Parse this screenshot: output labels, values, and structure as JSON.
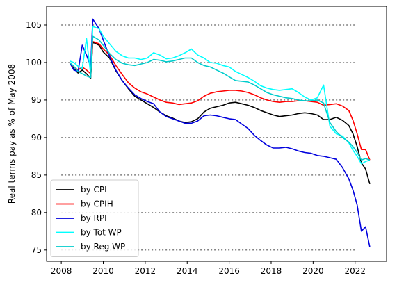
{
  "chart_data": {
    "type": "line",
    "title": "",
    "xlabel": "",
    "ylabel": "Real terms pay as % of May 2008",
    "xlim": [
      2007.3,
      2023.5
    ],
    "ylim": [
      73.5,
      107.5
    ],
    "xticks": [
      2008,
      2010,
      2012,
      2014,
      2016,
      2018,
      2020,
      2022
    ],
    "yticks": [
      75,
      80,
      85,
      90,
      95,
      100,
      105
    ],
    "reference_lines": {
      "style": "dotted",
      "color": "#808080",
      "y": [
        75,
        80,
        85,
        90,
        95,
        100,
        105
      ],
      "x_range": [
        2008.0,
        2022.0
      ]
    },
    "legend": {
      "position": "lower-left"
    },
    "grid": false,
    "series": [
      {
        "name": "by CPI",
        "color": "#000000",
        "x": [
          2008.4,
          2008.6,
          2008.8,
          2009.0,
          2009.2,
          2009.4,
          2009.5,
          2009.8,
          2010.0,
          2010.3,
          2010.6,
          2010.9,
          2011.2,
          2011.5,
          2011.8,
          2012.1,
          2012.4,
          2012.7,
          2013.0,
          2013.3,
          2013.6,
          2013.9,
          2014.2,
          2014.5,
          2014.8,
          2015.1,
          2015.4,
          2015.7,
          2016.0,
          2016.3,
          2016.6,
          2016.9,
          2017.2,
          2017.5,
          2017.8,
          2018.1,
          2018.4,
          2018.7,
          2019.0,
          2019.3,
          2019.6,
          2019.9,
          2020.2,
          2020.5,
          2020.8,
          2021.1,
          2021.4,
          2021.7,
          2021.9,
          2022.1,
          2022.3,
          2022.5,
          2022.7
        ],
        "values": [
          100.0,
          99.2,
          98.6,
          99.0,
          98.5,
          97.9,
          102.7,
          102.3,
          101.4,
          100.6,
          98.9,
          97.6,
          96.5,
          95.5,
          95.0,
          94.5,
          94.0,
          93.4,
          92.9,
          92.6,
          92.2,
          92.0,
          92.1,
          92.5,
          93.4,
          93.9,
          94.1,
          94.3,
          94.6,
          94.7,
          94.5,
          94.3,
          94.0,
          93.6,
          93.3,
          93.0,
          92.8,
          92.9,
          93.0,
          93.2,
          93.3,
          93.2,
          93.0,
          92.4,
          92.4,
          92.7,
          92.3,
          91.6,
          90.5,
          88.8,
          86.6,
          85.8,
          83.8
        ]
      },
      {
        "name": "by CPIH",
        "color": "#ff0000",
        "x": [
          2008.4,
          2008.6,
          2008.8,
          2009.0,
          2009.2,
          2009.4,
          2009.5,
          2009.8,
          2010.0,
          2010.3,
          2010.6,
          2010.9,
          2011.2,
          2011.5,
          2011.8,
          2012.1,
          2012.4,
          2012.7,
          2013.0,
          2013.3,
          2013.6,
          2013.9,
          2014.2,
          2014.5,
          2014.8,
          2015.1,
          2015.4,
          2015.7,
          2016.0,
          2016.3,
          2016.6,
          2016.9,
          2017.2,
          2017.5,
          2017.8,
          2018.1,
          2018.4,
          2018.7,
          2019.0,
          2019.3,
          2019.6,
          2019.9,
          2020.2,
          2020.5,
          2020.8,
          2021.1,
          2021.4,
          2021.7,
          2021.9,
          2022.1,
          2022.3,
          2022.5,
          2022.7
        ],
        "values": [
          100.0,
          99.4,
          99.0,
          99.4,
          99.0,
          98.5,
          102.8,
          102.5,
          101.8,
          101.0,
          99.6,
          98.4,
          97.3,
          96.6,
          96.1,
          95.8,
          95.4,
          95.0,
          94.7,
          94.6,
          94.4,
          94.5,
          94.6,
          94.9,
          95.5,
          95.9,
          96.1,
          96.2,
          96.3,
          96.3,
          96.2,
          96.0,
          95.7,
          95.3,
          95.0,
          94.8,
          94.7,
          94.8,
          94.8,
          94.9,
          94.9,
          94.8,
          94.7,
          94.3,
          94.4,
          94.5,
          94.2,
          93.6,
          92.3,
          90.5,
          88.4,
          88.4,
          87.0
        ]
      },
      {
        "name": "by RPI",
        "color": "#0000dd",
        "x": [
          2008.4,
          2008.6,
          2008.8,
          2009.0,
          2009.2,
          2009.4,
          2009.5,
          2009.8,
          2010.0,
          2010.3,
          2010.6,
          2010.9,
          2011.2,
          2011.5,
          2011.8,
          2012.1,
          2012.4,
          2012.7,
          2013.0,
          2013.3,
          2013.6,
          2013.9,
          2014.2,
          2014.5,
          2014.8,
          2015.1,
          2015.4,
          2015.7,
          2016.0,
          2016.3,
          2016.6,
          2016.9,
          2017.2,
          2017.5,
          2017.8,
          2018.1,
          2018.4,
          2018.7,
          2019.0,
          2019.3,
          2019.6,
          2019.9,
          2020.2,
          2020.5,
          2020.8,
          2021.1,
          2021.4,
          2021.7,
          2021.9,
          2022.1,
          2022.3,
          2022.5,
          2022.7
        ],
        "values": [
          100.0,
          99.0,
          98.8,
          102.3,
          101.0,
          99.5,
          105.8,
          104.5,
          103.0,
          100.8,
          99.0,
          97.6,
          96.6,
          95.7,
          95.2,
          94.8,
          94.5,
          93.4,
          92.8,
          92.5,
          92.2,
          91.9,
          91.9,
          92.2,
          92.9,
          93.0,
          92.9,
          92.7,
          92.5,
          92.4,
          91.8,
          91.2,
          90.3,
          89.6,
          89.0,
          88.6,
          88.6,
          88.7,
          88.5,
          88.2,
          88.0,
          87.9,
          87.6,
          87.5,
          87.3,
          87.1,
          86.0,
          84.5,
          83.0,
          81.0,
          77.5,
          78.1,
          75.4
        ]
      },
      {
        "name": "by Tot WP",
        "color": "#00ffff",
        "x": [
          2008.4,
          2008.6,
          2008.8,
          2009.0,
          2009.2,
          2009.4,
          2009.5,
          2009.8,
          2010.0,
          2010.3,
          2010.6,
          2010.9,
          2011.2,
          2011.5,
          2011.8,
          2012.1,
          2012.4,
          2012.7,
          2013.0,
          2013.3,
          2013.6,
          2013.9,
          2014.2,
          2014.5,
          2014.8,
          2015.1,
          2015.4,
          2015.7,
          2016.0,
          2016.3,
          2016.6,
          2016.9,
          2017.2,
          2017.5,
          2017.8,
          2018.1,
          2018.4,
          2018.7,
          2019.0,
          2019.3,
          2019.6,
          2019.9,
          2020.2,
          2020.5,
          2020.8,
          2021.1,
          2021.4,
          2021.7,
          2021.9,
          2022.1,
          2022.3,
          2022.5,
          2022.7
        ],
        "values": [
          100.2,
          100.0,
          99.5,
          99.2,
          103.2,
          98.4,
          104.8,
          104.5,
          103.5,
          102.5,
          101.5,
          100.9,
          100.6,
          100.6,
          100.4,
          100.6,
          101.3,
          101.0,
          100.5,
          100.6,
          100.9,
          101.3,
          101.8,
          101.0,
          100.6,
          100.0,
          99.9,
          99.6,
          99.4,
          98.8,
          98.4,
          98.0,
          97.5,
          96.9,
          96.6,
          96.4,
          96.3,
          96.4,
          96.5,
          96.0,
          95.4,
          95.0,
          95.3,
          97.0,
          91.5,
          90.5,
          90.2,
          89.3,
          88.3,
          87.5,
          86.5,
          86.8,
          87.0
        ]
      },
      {
        "name": "by Reg WP",
        "color": "#00cccc",
        "x": [
          2008.4,
          2008.6,
          2008.8,
          2009.0,
          2009.2,
          2009.4,
          2009.5,
          2009.8,
          2010.0,
          2010.3,
          2010.6,
          2010.9,
          2011.2,
          2011.5,
          2011.8,
          2012.1,
          2012.4,
          2012.7,
          2013.0,
          2013.3,
          2013.6,
          2013.9,
          2014.2,
          2014.5,
          2014.8,
          2015.1,
          2015.4,
          2015.7,
          2016.0,
          2016.3,
          2016.6,
          2016.9,
          2017.2,
          2017.5,
          2017.8,
          2018.1,
          2018.4,
          2018.7,
          2019.0,
          2019.3,
          2019.6,
          2019.9,
          2020.2,
          2020.5,
          2020.8,
          2021.1,
          2021.4,
          2021.7,
          2021.9,
          2022.1,
          2022.3,
          2022.5,
          2022.7
        ],
        "values": [
          100.0,
          99.5,
          98.8,
          98.5,
          98.2,
          98.0,
          103.5,
          103.0,
          102.3,
          101.2,
          100.4,
          99.9,
          99.7,
          99.6,
          99.8,
          100.0,
          100.4,
          100.3,
          100.1,
          100.2,
          100.4,
          100.6,
          100.6,
          100.0,
          99.6,
          99.4,
          99.0,
          98.6,
          98.1,
          97.6,
          97.5,
          97.4,
          97.0,
          96.5,
          96.0,
          95.7,
          95.5,
          95.3,
          95.2,
          95.0,
          94.9,
          94.9,
          95.0,
          94.6,
          92.0,
          90.8,
          90.0,
          89.4,
          88.8,
          88.0,
          87.0,
          87.2,
          87.0
        ]
      }
    ]
  }
}
